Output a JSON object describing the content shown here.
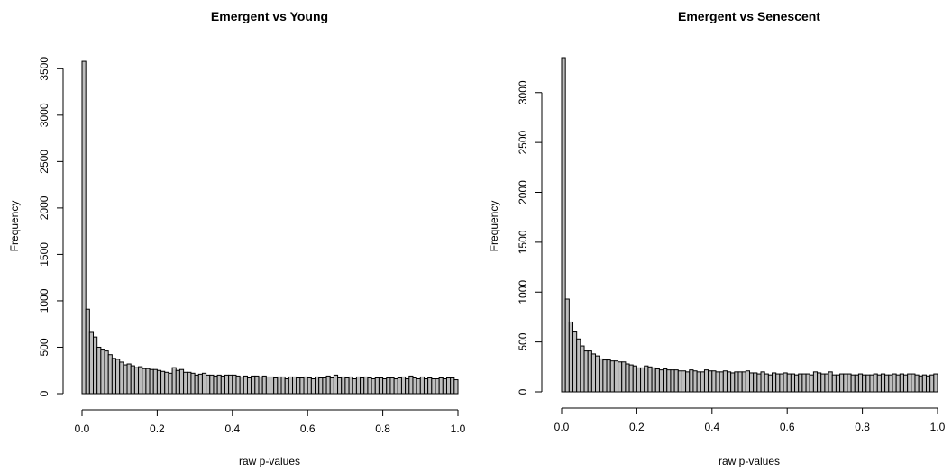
{
  "chart_data": [
    {
      "type": "bar",
      "title": "Emergent vs Young",
      "xlabel": "raw p-values",
      "ylabel": "Frequency",
      "xlim": [
        0,
        1
      ],
      "ylim": [
        0,
        3600
      ],
      "bin_width": 0.01,
      "x_ticks": [
        "0.0",
        "0.2",
        "0.4",
        "0.6",
        "0.8",
        "1.0"
      ],
      "y_ticks": [
        "0",
        "500",
        "1000",
        "1500",
        "2000",
        "2500",
        "3000",
        "3500"
      ],
      "grid": false,
      "values": [
        3580,
        910,
        660,
        610,
        500,
        470,
        460,
        420,
        380,
        370,
        340,
        310,
        320,
        300,
        280,
        290,
        270,
        270,
        260,
        260,
        250,
        240,
        230,
        220,
        280,
        250,
        260,
        230,
        230,
        220,
        200,
        210,
        220,
        200,
        200,
        190,
        200,
        190,
        200,
        200,
        200,
        190,
        180,
        190,
        170,
        190,
        190,
        180,
        190,
        180,
        180,
        170,
        180,
        180,
        160,
        180,
        180,
        170,
        170,
        180,
        170,
        160,
        180,
        170,
        170,
        190,
        170,
        200,
        170,
        180,
        170,
        180,
        160,
        180,
        170,
        180,
        170,
        160,
        170,
        170,
        160,
        170,
        170,
        160,
        170,
        180,
        160,
        190,
        170,
        160,
        180,
        160,
        170,
        160,
        160,
        170,
        160,
        170,
        170,
        150
      ]
    },
    {
      "type": "bar",
      "title": "Emergent vs Senescent",
      "xlabel": "raw p-values",
      "ylabel": "Frequency",
      "xlim": [
        0,
        1
      ],
      "ylim": [
        0,
        3350
      ],
      "bin_width": 0.01,
      "x_ticks": [
        "0.0",
        "0.2",
        "0.4",
        "0.6",
        "0.8",
        "1.0"
      ],
      "y_ticks": [
        "0",
        "500",
        "1000",
        "1500",
        "2000",
        "2500",
        "3000"
      ],
      "grid": false,
      "values": [
        3350,
        930,
        700,
        600,
        530,
        460,
        410,
        410,
        380,
        360,
        330,
        320,
        320,
        310,
        310,
        300,
        300,
        280,
        270,
        260,
        240,
        240,
        260,
        250,
        240,
        230,
        220,
        230,
        220,
        220,
        220,
        210,
        210,
        200,
        220,
        210,
        200,
        200,
        220,
        210,
        210,
        200,
        200,
        210,
        200,
        190,
        200,
        200,
        200,
        210,
        190,
        190,
        180,
        200,
        180,
        170,
        190,
        180,
        180,
        190,
        180,
        180,
        170,
        180,
        180,
        180,
        170,
        200,
        190,
        180,
        180,
        200,
        170,
        170,
        180,
        180,
        180,
        170,
        170,
        180,
        170,
        170,
        170,
        180,
        170,
        180,
        170,
        170,
        180,
        170,
        180,
        170,
        180,
        180,
        170,
        160,
        170,
        160,
        170,
        180
      ]
    }
  ]
}
